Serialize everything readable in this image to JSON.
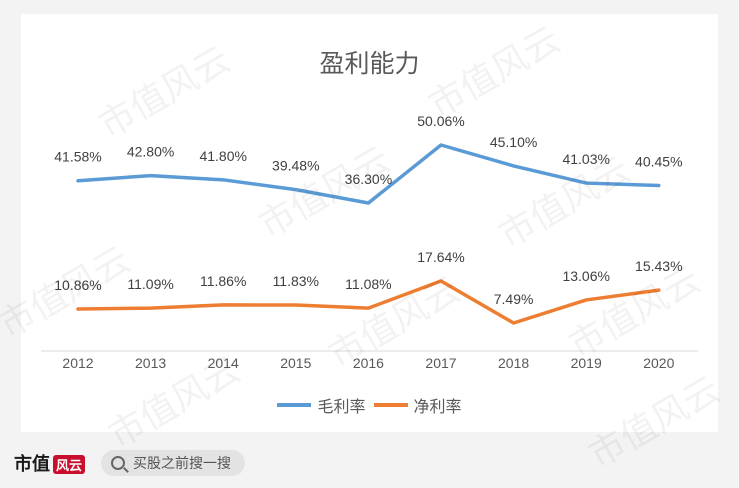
{
  "chart_data": {
    "type": "line",
    "title": "盈利能力",
    "categories": [
      "2012",
      "2013",
      "2014",
      "2015",
      "2016",
      "2017",
      "2018",
      "2019",
      "2020"
    ],
    "series": [
      {
        "name": "毛利率",
        "color": "#5b9bd5",
        "values": [
          41.58,
          42.8,
          41.8,
          39.48,
          36.3,
          50.06,
          45.1,
          41.03,
          40.45
        ],
        "labels": [
          "41.58%",
          "42.80%",
          "41.80%",
          "39.48%",
          "36.30%",
          "50.06%",
          "45.10%",
          "41.03%",
          "40.45%"
        ]
      },
      {
        "name": "净利率",
        "color": "#ed7d31",
        "values": [
          10.86,
          11.09,
          11.86,
          11.83,
          11.08,
          17.64,
          7.49,
          13.06,
          15.43
        ],
        "labels": [
          "10.86%",
          "11.09%",
          "11.86%",
          "11.83%",
          "11.08%",
          "17.64%",
          "7.49%",
          "13.06%",
          "15.43%"
        ]
      }
    ],
    "grid": false,
    "legend": "bottom"
  },
  "footer": {
    "brand": "市值",
    "brand_seal": "风云",
    "search_text": "买股之前搜一搜"
  },
  "watermark_text": "市值风云"
}
